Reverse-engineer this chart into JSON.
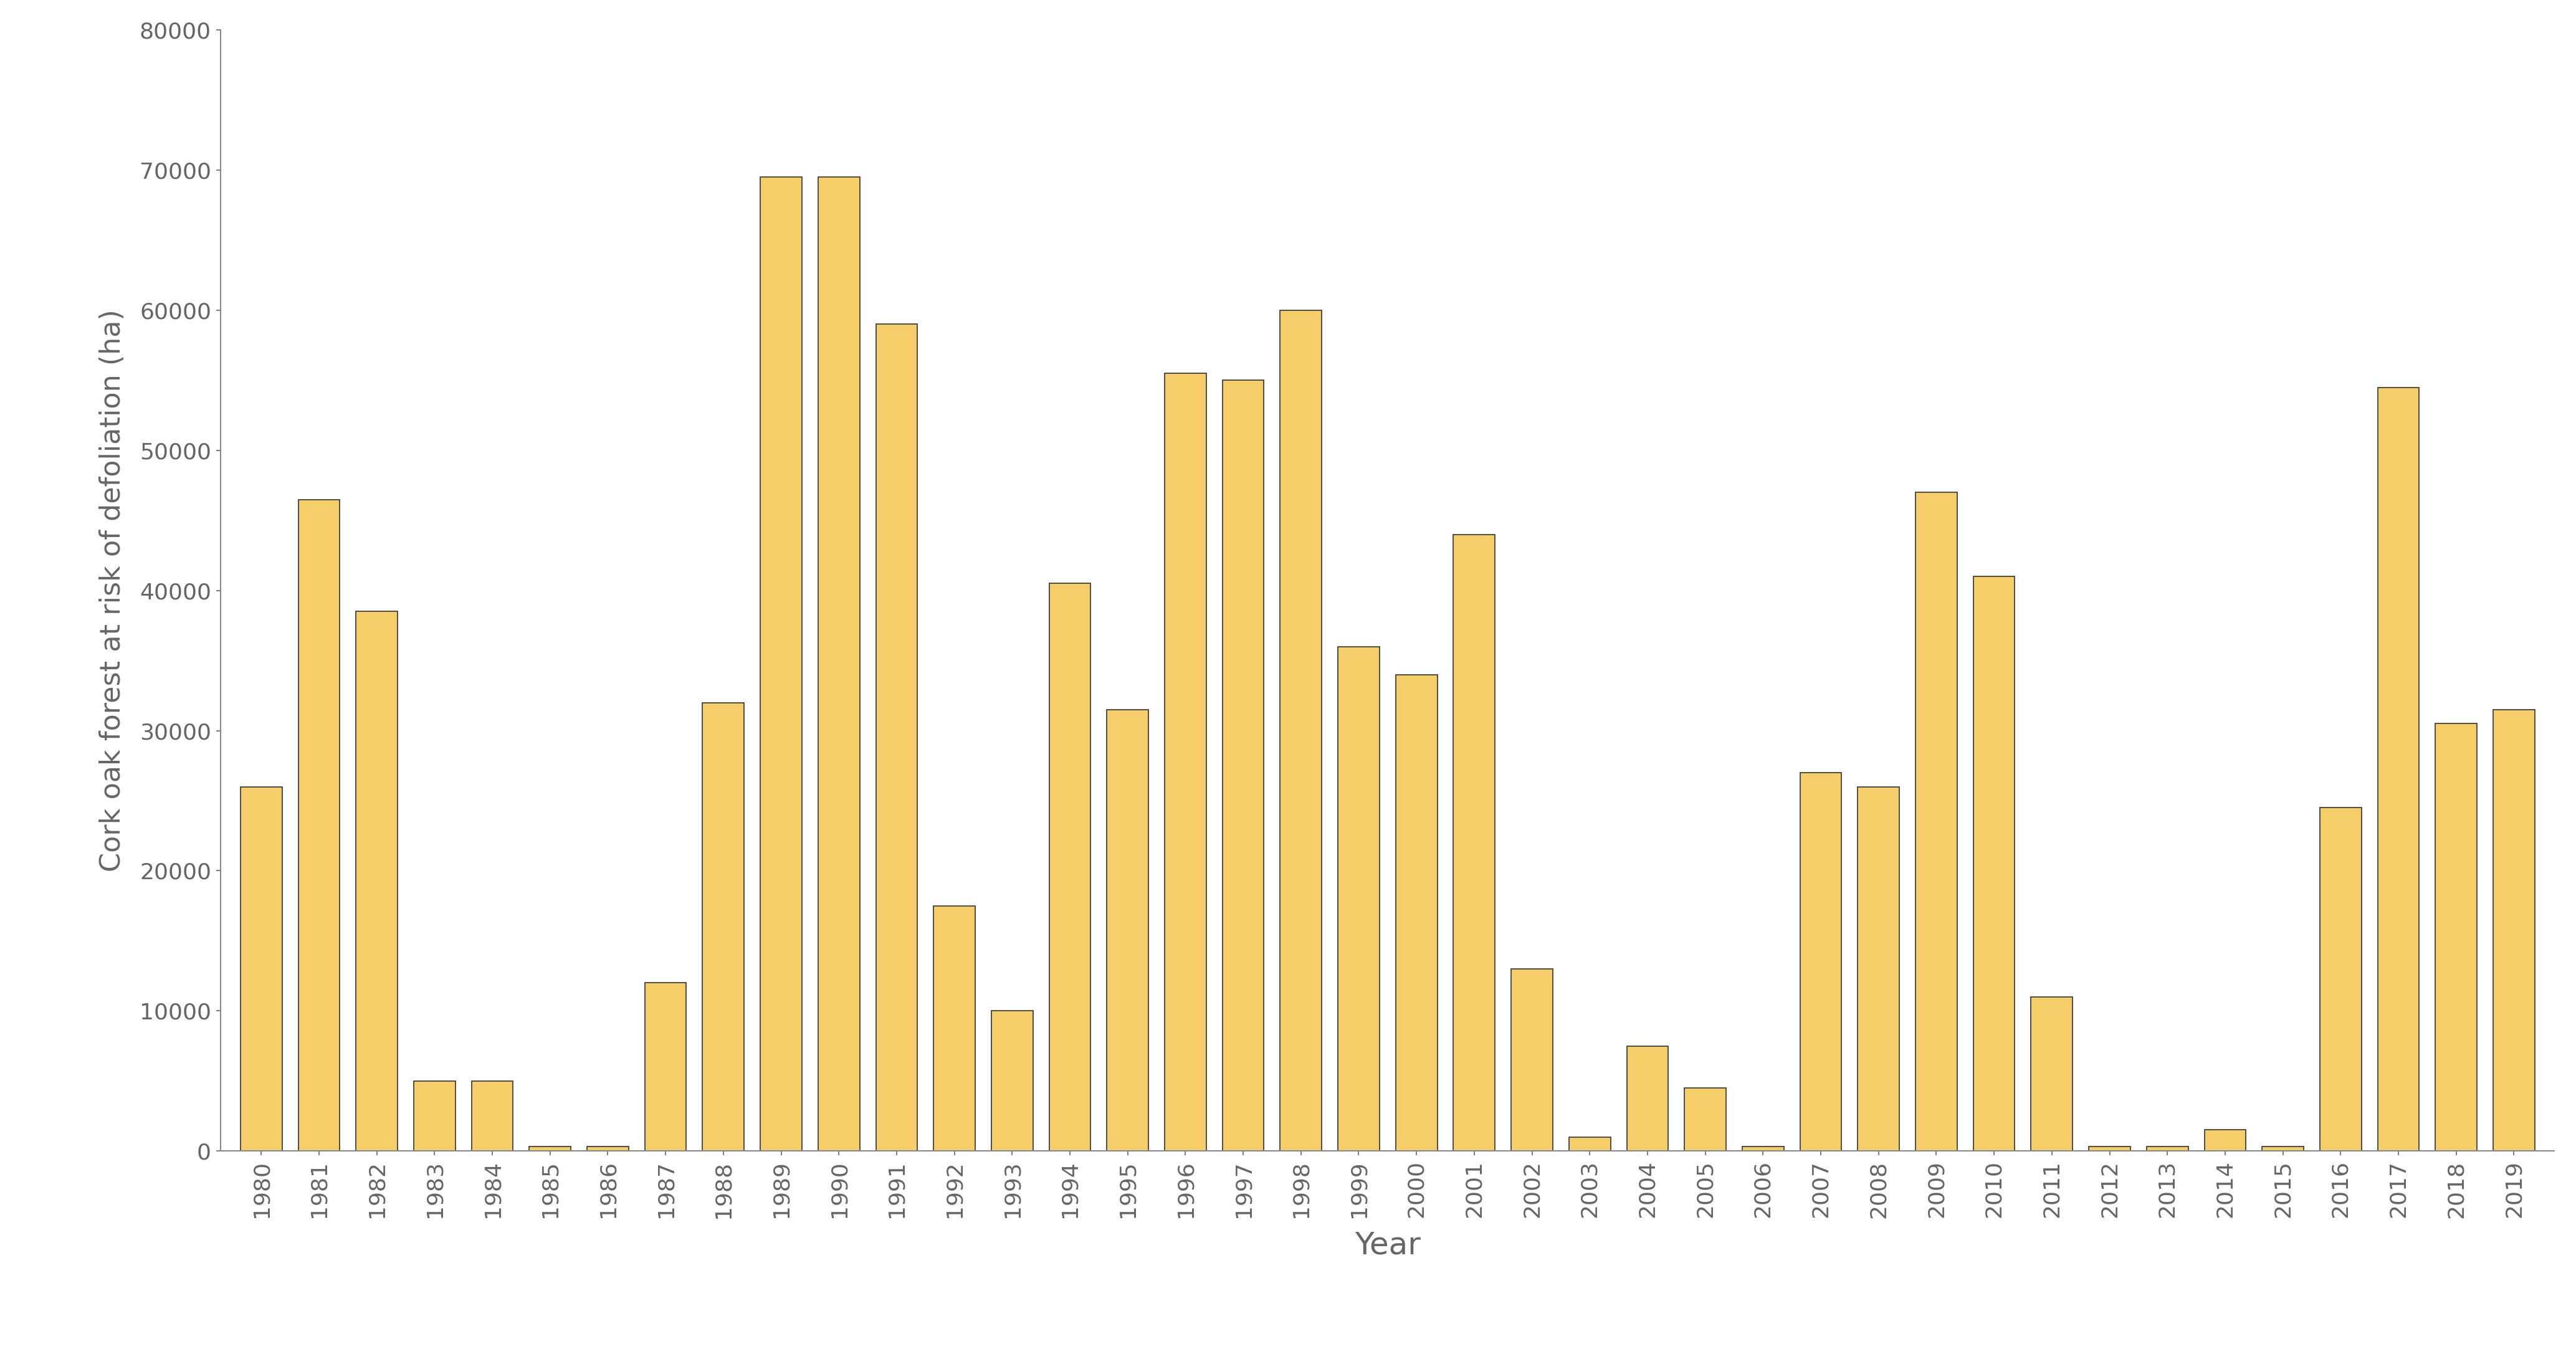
{
  "years": [
    1980,
    1981,
    1982,
    1983,
    1984,
    1985,
    1986,
    1987,
    1988,
    1989,
    1990,
    1991,
    1992,
    1993,
    1994,
    1995,
    1996,
    1997,
    1998,
    1999,
    2000,
    2001,
    2002,
    2003,
    2004,
    2005,
    2006,
    2007,
    2008,
    2009,
    2010,
    2011,
    2012,
    2013,
    2014,
    2015,
    2016,
    2017,
    2018,
    2019
  ],
  "values": [
    26000,
    46500,
    38500,
    5000,
    5000,
    300,
    300,
    12000,
    32000,
    69500,
    69500,
    59000,
    17500,
    10000,
    40500,
    31500,
    55500,
    55000,
    60000,
    36000,
    34000,
    44000,
    13000,
    1000,
    7500,
    4500,
    300,
    27000,
    26000,
    47000,
    41000,
    11000,
    300,
    300,
    1500,
    300,
    24500,
    54500,
    30500,
    31500
  ],
  "bar_color": "#F5CE6A",
  "bar_edge_color": "#333333",
  "bar_edge_width": 1.2,
  "xlabel": "Year",
  "ylabel": "Cork oak forest at risk of defoliation (ha)",
  "ylim": [
    0,
    80000
  ],
  "yticks": [
    0,
    10000,
    20000,
    30000,
    40000,
    50000,
    60000,
    70000,
    80000
  ],
  "background_color": "#ffffff",
  "xlabel_fontsize": 36,
  "ylabel_fontsize": 32,
  "tick_fontsize": 26,
  "tick_color": "#666666",
  "spine_color": "#888888"
}
